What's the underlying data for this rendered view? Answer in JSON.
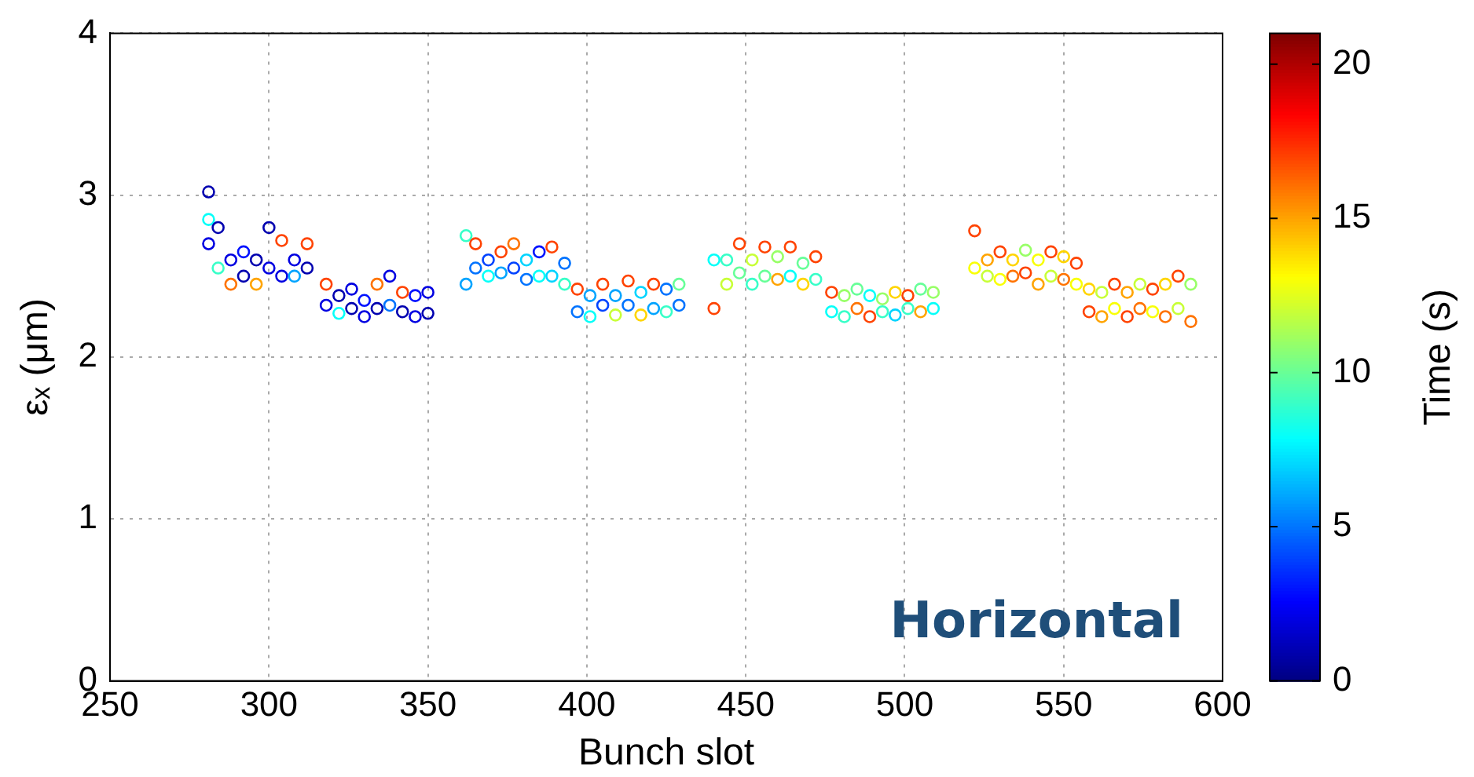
{
  "chart_data": {
    "type": "scatter",
    "xlabel": "Bunch slot",
    "ylabel": "εₓ (μm)",
    "clabel": "Time (s)",
    "annotations": [
      "Horizontal"
    ],
    "xlim": [
      250,
      600
    ],
    "xticks": [
      250,
      300,
      350,
      400,
      450,
      500,
      550,
      600
    ],
    "ylim": [
      0,
      4
    ],
    "yticks": [
      0,
      1,
      2,
      3,
      4
    ],
    "clim": [
      0,
      21
    ],
    "cticks": [
      0,
      5,
      10,
      15,
      20
    ],
    "grid": true,
    "marker": "circle",
    "legend": false,
    "x": [
      281,
      281,
      281,
      284,
      284,
      288,
      288,
      292,
      292,
      296,
      296,
      300,
      300,
      304,
      304,
      308,
      308,
      312,
      312,
      318,
      318,
      322,
      322,
      326,
      326,
      330,
      330,
      334,
      334,
      338,
      338,
      342,
      342,
      346,
      346,
      350,
      350,
      362,
      362,
      365,
      365,
      369,
      369,
      373,
      373,
      377,
      377,
      381,
      381,
      385,
      385,
      389,
      389,
      393,
      393,
      397,
      397,
      401,
      401,
      405,
      405,
      409,
      409,
      413,
      413,
      417,
      417,
      421,
      421,
      425,
      425,
      429,
      429,
      440,
      440,
      444,
      444,
      448,
      448,
      452,
      452,
      456,
      456,
      460,
      460,
      464,
      464,
      468,
      468,
      472,
      472,
      477,
      477,
      481,
      481,
      485,
      485,
      489,
      489,
      493,
      493,
      497,
      497,
      501,
      501,
      505,
      505,
      509,
      509,
      522,
      522,
      526,
      526,
      530,
      530,
      534,
      534,
      538,
      538,
      542,
      542,
      546,
      546,
      550,
      550,
      554,
      554,
      558,
      558,
      562,
      562,
      566,
      566,
      570,
      570,
      574,
      574,
      578,
      578,
      582,
      582,
      586,
      586,
      590,
      590
    ],
    "values": [
      3.02,
      2.7,
      2.85,
      2.8,
      2.55,
      2.6,
      2.45,
      2.65,
      2.5,
      2.6,
      2.45,
      2.8,
      2.55,
      2.72,
      2.5,
      2.6,
      2.5,
      2.7,
      2.55,
      2.45,
      2.32,
      2.38,
      2.27,
      2.42,
      2.3,
      2.35,
      2.25,
      2.45,
      2.3,
      2.5,
      2.32,
      2.4,
      2.28,
      2.38,
      2.25,
      2.4,
      2.27,
      2.75,
      2.45,
      2.7,
      2.55,
      2.6,
      2.5,
      2.65,
      2.52,
      2.7,
      2.55,
      2.6,
      2.48,
      2.65,
      2.5,
      2.68,
      2.5,
      2.58,
      2.45,
      2.42,
      2.28,
      2.38,
      2.25,
      2.45,
      2.32,
      2.38,
      2.26,
      2.47,
      2.32,
      2.4,
      2.26,
      2.45,
      2.3,
      2.42,
      2.28,
      2.45,
      2.32,
      2.6,
      2.3,
      2.6,
      2.45,
      2.7,
      2.52,
      2.6,
      2.45,
      2.68,
      2.5,
      2.62,
      2.48,
      2.68,
      2.5,
      2.58,
      2.45,
      2.62,
      2.48,
      2.4,
      2.28,
      2.38,
      2.25,
      2.42,
      2.3,
      2.38,
      2.25,
      2.36,
      2.28,
      2.4,
      2.26,
      2.38,
      2.3,
      2.42,
      2.28,
      2.4,
      2.3,
      2.78,
      2.55,
      2.6,
      2.5,
      2.65,
      2.48,
      2.6,
      2.5,
      2.66,
      2.52,
      2.6,
      2.45,
      2.65,
      2.5,
      2.62,
      2.48,
      2.58,
      2.45,
      2.42,
      2.28,
      2.4,
      2.25,
      2.45,
      2.3,
      2.4,
      2.25,
      2.45,
      2.3,
      2.42,
      2.28,
      2.45,
      2.25,
      2.5,
      2.3,
      2.45,
      2.22
    ],
    "cvalues": [
      1,
      2,
      8,
      1,
      9,
      2,
      16,
      3,
      1,
      1,
      15,
      1,
      2,
      17,
      2,
      2,
      6,
      17,
      1,
      17,
      2,
      1,
      8,
      2,
      1,
      3,
      2,
      16,
      1,
      2,
      5,
      17,
      1,
      3,
      2,
      2,
      1,
      9,
      6,
      17,
      5,
      4,
      8,
      17,
      6,
      16,
      4,
      7,
      5,
      3,
      8,
      17,
      7,
      5,
      9,
      17,
      5,
      6,
      8,
      17,
      4,
      6,
      12,
      17,
      5,
      7,
      14,
      17,
      6,
      5,
      9,
      10,
      5,
      8,
      17,
      9,
      12,
      17,
      10,
      12,
      9,
      17,
      10,
      11,
      15,
      17,
      8,
      10,
      14,
      17,
      9,
      17,
      8,
      11,
      9,
      10,
      16,
      8,
      17,
      11,
      9,
      14,
      7,
      17,
      9,
      10,
      15,
      11,
      8,
      17,
      13,
      15,
      12,
      17,
      13,
      14,
      16,
      11,
      17,
      13,
      15,
      17,
      12,
      14,
      16,
      17,
      13,
      14,
      17,
      12,
      15,
      17,
      13,
      15,
      17,
      12,
      16,
      17,
      13,
      14,
      16,
      17,
      12,
      11,
      16
    ]
  }
}
